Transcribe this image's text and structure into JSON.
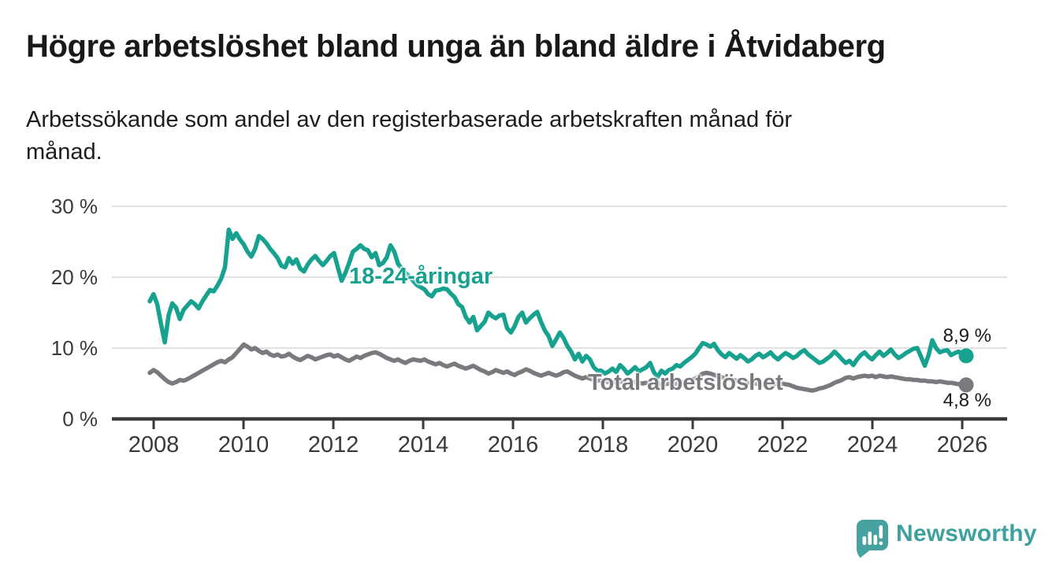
{
  "header": {
    "title": "Högre arbetslöshet bland unga än bland äldre i Åtvidaberg",
    "subtitle": "Arbetssökande som andel av den registerbaserade arbetskraften månad för\nmånad."
  },
  "chart_data": {
    "type": "line",
    "title": "Högre arbetslöshet bland unga än bland äldre i Åtvidaberg",
    "subtitle": "Arbetssökande som andel av den registerbaserade arbetskraften månad för månad.",
    "unit": "%",
    "frequency": "monthly",
    "x_range": [
      "2008-01",
      "2026-02"
    ],
    "grid": "horizontal",
    "legend_position": "inline-labels",
    "x_axis": {
      "ticks": [
        {
          "year": 2008,
          "label": "2008"
        },
        {
          "year": 2010,
          "label": "2010"
        },
        {
          "year": 2012,
          "label": "2012"
        },
        {
          "year": 2014,
          "label": "2014"
        },
        {
          "year": 2016,
          "label": "2016"
        },
        {
          "year": 2018,
          "label": "2018"
        },
        {
          "year": 2020,
          "label": "2020"
        },
        {
          "year": 2022,
          "label": "2022"
        },
        {
          "year": 2024,
          "label": "2024"
        },
        {
          "year": 2026,
          "label": "2026"
        }
      ]
    },
    "y_axis": {
      "ylim": [
        0,
        30
      ],
      "ticks": [
        {
          "value": 0,
          "label": "0 %"
        },
        {
          "value": 10,
          "label": "10 %"
        },
        {
          "value": 20,
          "label": "20 %"
        },
        {
          "value": 30,
          "label": "30 %"
        }
      ]
    },
    "series": [
      {
        "name": "18-24-åringar",
        "color": "#17A290",
        "end_label": "8,9 %",
        "last_value": 8.9,
        "values": [
          16.6,
          17.6,
          16.2,
          13.4,
          10.8,
          14.6,
          16.3,
          15.7,
          14.1,
          15.4,
          16.0,
          16.6,
          16.2,
          15.6,
          16.6,
          17.4,
          18.2,
          18.0,
          18.8,
          19.8,
          21.4,
          26.7,
          25.4,
          26.2,
          25.3,
          24.6,
          23.6,
          22.9,
          24.0,
          25.8,
          25.4,
          24.8,
          24.0,
          23.4,
          22.7,
          21.6,
          21.4,
          22.7,
          21.9,
          22.5,
          21.2,
          20.8,
          21.8,
          22.5,
          23.0,
          22.3,
          21.7,
          22.3,
          23.0,
          23.4,
          21.4,
          19.5,
          20.6,
          22.0,
          23.6,
          24.0,
          24.5,
          24.0,
          23.8,
          22.8,
          23.4,
          21.7,
          22.0,
          22.8,
          24.5,
          23.6,
          21.9,
          21.2,
          20.6,
          20.1,
          19.5,
          18.9,
          18.6,
          18.3,
          17.6,
          17.3,
          18.1,
          18.2,
          18.4,
          18.3,
          17.7,
          17.2,
          16.2,
          15.8,
          14.4,
          13.6,
          14.4,
          12.5,
          13.1,
          13.7,
          15.0,
          14.5,
          14.2,
          14.6,
          14.7,
          12.8,
          12.2,
          13.1,
          14.4,
          15.0,
          13.6,
          14.2,
          14.7,
          15.1,
          13.7,
          12.5,
          11.7,
          10.3,
          11.2,
          12.2,
          11.4,
          10.3,
          9.5,
          8.4,
          9.2,
          8.1,
          8.9,
          8.4,
          7.3,
          6.8,
          6.8,
          6.4,
          6.7,
          7.1,
          6.6,
          7.6,
          7.1,
          6.4,
          6.8,
          7.3,
          6.7,
          7.0,
          7.3,
          7.9,
          6.6,
          5.9,
          6.8,
          6.4,
          6.9,
          7.1,
          7.6,
          7.4,
          7.9,
          8.3,
          8.7,
          9.2,
          10.0,
          10.7,
          10.5,
          10.2,
          10.6,
          9.7,
          9.1,
          8.7,
          9.3,
          8.9,
          8.5,
          9.0,
          8.6,
          8.1,
          8.4,
          8.9,
          9.2,
          8.7,
          9.0,
          9.4,
          8.8,
          8.4,
          8.9,
          9.3,
          9.0,
          8.6,
          8.9,
          9.4,
          9.7,
          9.1,
          8.7,
          8.3,
          7.9,
          8.1,
          8.5,
          8.9,
          9.5,
          9.0,
          8.4,
          7.9,
          8.2,
          7.6,
          8.4,
          9.0,
          9.4,
          8.8,
          8.4,
          9.0,
          9.5,
          8.9,
          9.3,
          9.8,
          9.1,
          8.6,
          8.9,
          9.3,
          9.6,
          9.9,
          10.0,
          8.8,
          7.5,
          9.0,
          11.1,
          10.0,
          9.4,
          9.6,
          9.7,
          9.0,
          9.3,
          9.5,
          9.1,
          8.9
        ]
      },
      {
        "name": "Total arbetslöshet",
        "color": "#797A7D",
        "end_label": "4,8 %",
        "last_value": 4.8,
        "values": [
          6.5,
          6.9,
          6.6,
          6.1,
          5.6,
          5.2,
          5.0,
          5.2,
          5.5,
          5.4,
          5.6,
          5.9,
          6.2,
          6.5,
          6.8,
          7.1,
          7.4,
          7.7,
          8.0,
          8.2,
          8.0,
          8.4,
          8.7,
          9.3,
          9.9,
          10.5,
          10.2,
          9.8,
          10.0,
          9.6,
          9.3,
          9.5,
          9.1,
          8.9,
          9.1,
          8.8,
          8.9,
          9.2,
          8.8,
          8.5,
          8.3,
          8.6,
          8.9,
          8.7,
          8.4,
          8.6,
          8.8,
          9.0,
          9.1,
          8.8,
          9.0,
          8.7,
          8.4,
          8.2,
          8.5,
          8.8,
          8.6,
          8.9,
          9.1,
          9.3,
          9.4,
          9.2,
          8.9,
          8.6,
          8.4,
          8.2,
          8.4,
          8.1,
          7.9,
          8.2,
          8.4,
          8.3,
          8.2,
          8.4,
          8.1,
          7.9,
          7.7,
          7.9,
          7.6,
          7.4,
          7.6,
          7.8,
          7.5,
          7.3,
          7.1,
          7.3,
          7.5,
          7.2,
          6.9,
          6.7,
          6.4,
          6.6,
          6.9,
          6.7,
          6.5,
          6.7,
          6.4,
          6.2,
          6.5,
          6.7,
          7.0,
          6.8,
          6.5,
          6.3,
          6.1,
          6.3,
          6.5,
          6.3,
          6.1,
          6.3,
          6.6,
          6.7,
          6.4,
          6.1,
          5.9,
          5.7,
          5.9,
          5.7,
          5.5,
          5.4,
          5.4,
          5.3,
          5.2,
          5.1,
          5.2,
          5.3,
          5.1,
          5.0,
          5.1,
          5.2,
          5.1,
          5.0,
          5.1,
          5.0,
          4.9,
          5.0,
          4.8,
          4.9,
          5.0,
          4.9,
          5.0,
          5.1,
          5.2,
          5.3,
          5.5,
          5.7,
          6.0,
          6.4,
          6.5,
          6.4,
          6.2,
          6.0,
          5.9,
          5.7,
          5.6,
          5.5,
          5.4,
          5.3,
          5.2,
          5.1,
          5.0,
          5.0,
          4.9,
          4.8,
          4.9,
          4.8,
          4.9,
          5.0,
          5.0,
          4.9,
          4.8,
          4.6,
          4.4,
          4.3,
          4.2,
          4.1,
          4.0,
          4.1,
          4.3,
          4.4,
          4.6,
          4.8,
          5.1,
          5.3,
          5.5,
          5.8,
          5.9,
          5.7,
          5.9,
          6.0,
          6.1,
          6.0,
          6.1,
          5.9,
          6.1,
          6.0,
          5.9,
          6.0,
          5.9,
          5.8,
          5.7,
          5.6,
          5.6,
          5.5,
          5.5,
          5.4,
          5.4,
          5.3,
          5.3,
          5.2,
          5.3,
          5.2,
          5.1,
          5.1,
          5.0,
          4.9,
          4.9,
          4.8
        ]
      }
    ]
  },
  "footer": {
    "brand": "Newsworthy",
    "logo_icon": "speech-bubble-bar-chart"
  },
  "colors": {
    "accent_teal": "#17A290",
    "series_gray": "#797A7D",
    "brand_teal": "#3EA19E",
    "grid": "#D9D9D9",
    "axis": "#3A3A3A",
    "text_dark": "#191919"
  }
}
